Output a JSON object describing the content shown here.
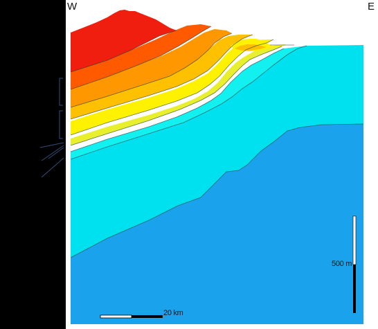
{
  "compass": {
    "west": "W",
    "east": "E"
  },
  "scale": {
    "horizontal_label": "20 km",
    "vertical_label": "500 m"
  },
  "colors": {
    "background": "#000000",
    "panel": "#ffffff",
    "basement": "#1aa3ec",
    "lower_unit": "#00e1f0",
    "unit_aqua": "#13f0f0",
    "unit_yellow_green": "#e8ef2c",
    "unit_yellow": "#fff200",
    "unit_amber": "#ffc000",
    "unit_orange": "#ff9800",
    "unit_red_orange": "#ff5a00",
    "unit_red": "#f01e0e",
    "scale_black": "#000000",
    "scale_white": "#ffffff"
  }
}
